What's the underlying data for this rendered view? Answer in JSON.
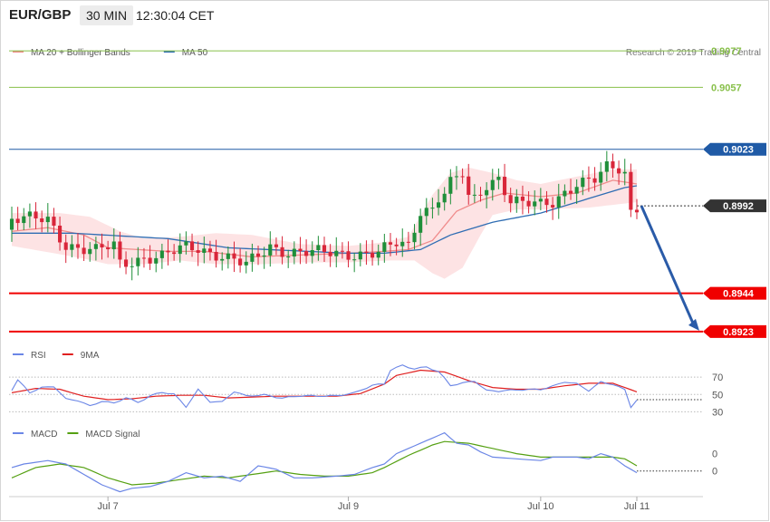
{
  "header": {
    "symbol": "EUR/GBP",
    "interval": "30 MIN",
    "time": "12:30:04 CET"
  },
  "colors": {
    "up": "#1f8f3a",
    "down": "#d9263a",
    "ma20": "#f08c8c",
    "band_fill": "#fde3e4",
    "ma50": "#2f6db3",
    "rsi": "#6b86e6",
    "rsi_ma": "#e02020",
    "macd": "#6b86e6",
    "macd_signal": "#55a012",
    "support": "#f00000",
    "resistance_green": "#88c04a",
    "resistance_blue": "#1f5aa6",
    "arrow": "#2a5ba8",
    "current": "#333333"
  },
  "chart_data": [
    {
      "type": "line",
      "panel": "price",
      "legend": [
        {
          "name": "MA 20 + Bollinger Bands",
          "color": "#f08c8c"
        },
        {
          "name": "MA 50",
          "color": "#2f6db3"
        }
      ],
      "credit": "Research © 2019 Trading Central",
      "ylim": [
        0.8915,
        0.9085
      ],
      "levels": [
        {
          "value": 0.9077,
          "label": "0.9077",
          "color": "#88c04a",
          "style": "thin"
        },
        {
          "value": 0.9057,
          "label": "0.9057",
          "color": "#88c04a",
          "style": "thin"
        },
        {
          "value": 0.9023,
          "label": "0.9023",
          "color": "#1f5aa6",
          "style": "thin",
          "box": true
        },
        {
          "value": 0.8992,
          "label": "0.8992",
          "color": "#333333",
          "style": "dotted",
          "box": true
        },
        {
          "value": 0.8944,
          "label": "0.8944",
          "color": "#f00000",
          "style": "bold",
          "box": true
        },
        {
          "value": 0.8923,
          "label": "0.8923",
          "color": "#f00000",
          "style": "bold",
          "box": true
        }
      ],
      "projection": {
        "from": 0.8992,
        "to": 0.8923
      },
      "x_ticks": [
        {
          "label": "Jul 7",
          "index": 16
        },
        {
          "label": "Jul 9",
          "index": 56
        },
        {
          "label": "Jul 10",
          "index": 88
        },
        {
          "label": "Jul 11",
          "index": 104
        }
      ],
      "candle_anchors": [
        [
          0,
          0.8985
        ],
        [
          6,
          0.8984
        ],
        [
          9,
          0.8971
        ],
        [
          14,
          0.8967
        ],
        [
          17,
          0.897
        ],
        [
          18,
          0.896
        ],
        [
          22,
          0.8964
        ],
        [
          25,
          0.8964
        ],
        [
          29,
          0.8969
        ],
        [
          31,
          0.8969
        ],
        [
          34,
          0.8966
        ],
        [
          37,
          0.8962
        ],
        [
          39,
          0.8959
        ],
        [
          42,
          0.8967
        ],
        [
          43,
          0.897
        ],
        [
          46,
          0.8967
        ],
        [
          50,
          0.8966
        ],
        [
          53,
          0.8966
        ],
        [
          56,
          0.8966
        ],
        [
          61,
          0.8966
        ],
        [
          64,
          0.8971
        ],
        [
          66,
          0.897
        ],
        [
          68,
          0.899
        ],
        [
          70,
          0.8991
        ],
        [
          71,
          0.8997
        ],
        [
          72,
          0.8999
        ],
        [
          73,
          0.9004
        ],
        [
          75,
          0.9009
        ],
        [
          76,
          0.8996
        ],
        [
          77,
          0.8995
        ],
        [
          79,
          0.9004
        ],
        [
          81,
          0.9008
        ],
        [
          83,
          0.8995
        ],
        [
          85,
          0.8993
        ],
        [
          88,
          0.8992
        ],
        [
          90,
          0.8994
        ],
        [
          92,
          0.9
        ],
        [
          94,
          0.9005
        ],
        [
          97,
          0.9006
        ],
        [
          99,
          0.9012
        ],
        [
          101,
          0.9012
        ],
        [
          102,
          0.901
        ],
        [
          103,
          0.8989
        ],
        [
          104,
          0.8992
        ]
      ],
      "ma50_anchors": [
        [
          0,
          0.8977
        ],
        [
          10,
          0.8977
        ],
        [
          26,
          0.8974
        ],
        [
          36,
          0.8969
        ],
        [
          56,
          0.8966
        ],
        [
          62,
          0.8966
        ],
        [
          68,
          0.8968
        ],
        [
          73,
          0.8976
        ],
        [
          80,
          0.8983
        ],
        [
          88,
          0.8988
        ],
        [
          96,
          0.8996
        ],
        [
          102,
          0.9002
        ],
        [
          104,
          0.9003
        ]
      ],
      "ma20_anchors": [
        [
          0,
          0.8978
        ],
        [
          6,
          0.898
        ],
        [
          12,
          0.8976
        ],
        [
          16,
          0.8969
        ],
        [
          21,
          0.8968
        ],
        [
          26,
          0.8967
        ],
        [
          32,
          0.8967
        ],
        [
          40,
          0.8964
        ],
        [
          48,
          0.8965
        ],
        [
          56,
          0.8966
        ],
        [
          62,
          0.8967
        ],
        [
          66,
          0.8968
        ],
        [
          70,
          0.8973
        ],
        [
          74,
          0.8989
        ],
        [
          78,
          0.8995
        ],
        [
          82,
          0.8999
        ],
        [
          88,
          0.8997
        ],
        [
          94,
          0.8999
        ],
        [
          100,
          0.9006
        ],
        [
          104,
          0.9004
        ]
      ],
      "band_upper_anchors": [
        [
          0,
          0.8988
        ],
        [
          8,
          0.8988
        ],
        [
          13,
          0.8986
        ],
        [
          18,
          0.8978
        ],
        [
          22,
          0.8974
        ],
        [
          28,
          0.8975
        ],
        [
          34,
          0.8977
        ],
        [
          40,
          0.8976
        ],
        [
          48,
          0.8971
        ],
        [
          56,
          0.897
        ],
        [
          62,
          0.8972
        ],
        [
          66,
          0.8975
        ],
        [
          70,
          0.8998
        ],
        [
          73,
          0.901
        ],
        [
          76,
          0.9013
        ],
        [
          80,
          0.901
        ],
        [
          84,
          0.9006
        ],
        [
          88,
          0.9004
        ],
        [
          94,
          0.9008
        ],
        [
          100,
          0.9012
        ],
        [
          104,
          0.9012
        ]
      ],
      "band_lower_anchors": [
        [
          0,
          0.897
        ],
        [
          7,
          0.8966
        ],
        [
          12,
          0.8963
        ],
        [
          16,
          0.896
        ],
        [
          22,
          0.896
        ],
        [
          28,
          0.8962
        ],
        [
          34,
          0.896
        ],
        [
          42,
          0.896
        ],
        [
          48,
          0.8961
        ],
        [
          56,
          0.8961
        ],
        [
          63,
          0.8962
        ],
        [
          67,
          0.8962
        ],
        [
          70,
          0.8955
        ],
        [
          72,
          0.8952
        ],
        [
          75,
          0.8958
        ],
        [
          78,
          0.8976
        ],
        [
          80,
          0.8987
        ],
        [
          84,
          0.899
        ],
        [
          88,
          0.899
        ],
        [
          96,
          0.8991
        ],
        [
          104,
          0.8994
        ]
      ]
    },
    {
      "type": "line",
      "panel": "rsi",
      "legend": [
        {
          "name": "RSI",
          "color": "#6b86e6"
        },
        {
          "name": "9MA",
          "color": "#e02020"
        }
      ],
      "ylim": [
        22,
        88
      ],
      "ticks": [
        70,
        50,
        30
      ],
      "dotted_levels": [
        70,
        50,
        30
      ],
      "current_value": 44,
      "rsi_anchors": [
        [
          0,
          55
        ],
        [
          1,
          66
        ],
        [
          3,
          52
        ],
        [
          5,
          58
        ],
        [
          7,
          60
        ],
        [
          9,
          45
        ],
        [
          11,
          43
        ],
        [
          13,
          36
        ],
        [
          15,
          42
        ],
        [
          17,
          40
        ],
        [
          19,
          47
        ],
        [
          21,
          41
        ],
        [
          23,
          48
        ],
        [
          25,
          52
        ],
        [
          27,
          50
        ],
        [
          29,
          36
        ],
        [
          31,
          56
        ],
        [
          33,
          42
        ],
        [
          35,
          41
        ],
        [
          37,
          53
        ],
        [
          39,
          48
        ],
        [
          42,
          50
        ],
        [
          45,
          46
        ],
        [
          48,
          48
        ],
        [
          51,
          48
        ],
        [
          54,
          49
        ],
        [
          57,
          52
        ],
        [
          60,
          60
        ],
        [
          62,
          62
        ],
        [
          63,
          78
        ],
        [
          65,
          84
        ],
        [
          67,
          80
        ],
        [
          69,
          82
        ],
        [
          71,
          76
        ],
        [
          73,
          60
        ],
        [
          75,
          63
        ],
        [
          77,
          66
        ],
        [
          79,
          55
        ],
        [
          81,
          54
        ],
        [
          85,
          55
        ],
        [
          88,
          56
        ],
        [
          90,
          60
        ],
        [
          92,
          65
        ],
        [
          94,
          62
        ],
        [
          96,
          54
        ],
        [
          98,
          64
        ],
        [
          100,
          62
        ],
        [
          102,
          56
        ],
        [
          103,
          36
        ],
        [
          104,
          44
        ]
      ],
      "ma9_anchors": [
        [
          0,
          52
        ],
        [
          4,
          57
        ],
        [
          8,
          56
        ],
        [
          12,
          48
        ],
        [
          16,
          44
        ],
        [
          20,
          45
        ],
        [
          24,
          48
        ],
        [
          28,
          49
        ],
        [
          32,
          49
        ],
        [
          36,
          46
        ],
        [
          40,
          47
        ],
        [
          44,
          48
        ],
        [
          48,
          48
        ],
        [
          54,
          48
        ],
        [
          58,
          51
        ],
        [
          62,
          62
        ],
        [
          64,
          72
        ],
        [
          68,
          78
        ],
        [
          72,
          76
        ],
        [
          76,
          66
        ],
        [
          80,
          58
        ],
        [
          84,
          56
        ],
        [
          88,
          56
        ],
        [
          92,
          60
        ],
        [
          96,
          63
        ],
        [
          100,
          63
        ],
        [
          102,
          58
        ],
        [
          104,
          53
        ]
      ]
    },
    {
      "type": "line",
      "panel": "macd",
      "legend": [
        {
          "name": "MACD",
          "color": "#6b86e6"
        },
        {
          "name": "MACD Signal",
          "color": "#55a012"
        }
      ],
      "ylim": [
        -0.0019,
        0.0026
      ],
      "ticks": [
        {
          "value": 0.0,
          "label": "0"
        },
        {
          "value": 0.001,
          "label": "0"
        }
      ],
      "macd_anchors": [
        [
          0,
          0.0002
        ],
        [
          2,
          0.0004
        ],
        [
          6,
          0.0006
        ],
        [
          9,
          0.0004
        ],
        [
          12,
          -0.0002
        ],
        [
          15,
          -0.0008
        ],
        [
          18,
          -0.0012
        ],
        [
          20,
          -0.001
        ],
        [
          23,
          -0.0009
        ],
        [
          26,
          -0.0006
        ],
        [
          29,
          -0.0001
        ],
        [
          32,
          -0.0004
        ],
        [
          35,
          -0.0003
        ],
        [
          38,
          -0.0006
        ],
        [
          41,
          0.0003
        ],
        [
          44,
          0.0001
        ],
        [
          47,
          -0.0004
        ],
        [
          50,
          -0.0004
        ],
        [
          54,
          -0.0003
        ],
        [
          57,
          -0.0002
        ],
        [
          60,
          0.0002
        ],
        [
          62,
          0.0004
        ],
        [
          64,
          0.001
        ],
        [
          66,
          0.0013
        ],
        [
          68,
          0.0016
        ],
        [
          70,
          0.0019
        ],
        [
          72,
          0.0022
        ],
        [
          74,
          0.0016
        ],
        [
          76,
          0.0015
        ],
        [
          78,
          0.0011
        ],
        [
          80,
          0.0008
        ],
        [
          84,
          0.0007
        ],
        [
          88,
          0.0006
        ],
        [
          90,
          0.0008
        ],
        [
          94,
          0.0008
        ],
        [
          96,
          0.0007
        ],
        [
          98,
          0.001
        ],
        [
          100,
          0.0008
        ],
        [
          102,
          0.0003
        ],
        [
          104,
          -0.0001
        ]
      ],
      "signal_anchors": [
        [
          0,
          -0.0004
        ],
        [
          4,
          0.0002
        ],
        [
          8,
          0.0004
        ],
        [
          12,
          0.0002
        ],
        [
          16,
          -0.0004
        ],
        [
          20,
          -0.0008
        ],
        [
          24,
          -0.0007
        ],
        [
          28,
          -0.0005
        ],
        [
          32,
          -0.0003
        ],
        [
          36,
          -0.0004
        ],
        [
          40,
          -0.0002
        ],
        [
          44,
          0.0
        ],
        [
          48,
          -0.0002
        ],
        [
          52,
          -0.0003
        ],
        [
          56,
          -0.0003
        ],
        [
          60,
          -0.0001
        ],
        [
          62,
          0.0002
        ],
        [
          66,
          0.0009
        ],
        [
          70,
          0.0015
        ],
        [
          72,
          0.0017
        ],
        [
          76,
          0.0016
        ],
        [
          80,
          0.0013
        ],
        [
          84,
          0.001
        ],
        [
          88,
          0.0008
        ],
        [
          92,
          0.0008
        ],
        [
          96,
          0.0008
        ],
        [
          100,
          0.0008
        ],
        [
          102,
          0.0007
        ],
        [
          104,
          0.0003
        ]
      ]
    }
  ]
}
